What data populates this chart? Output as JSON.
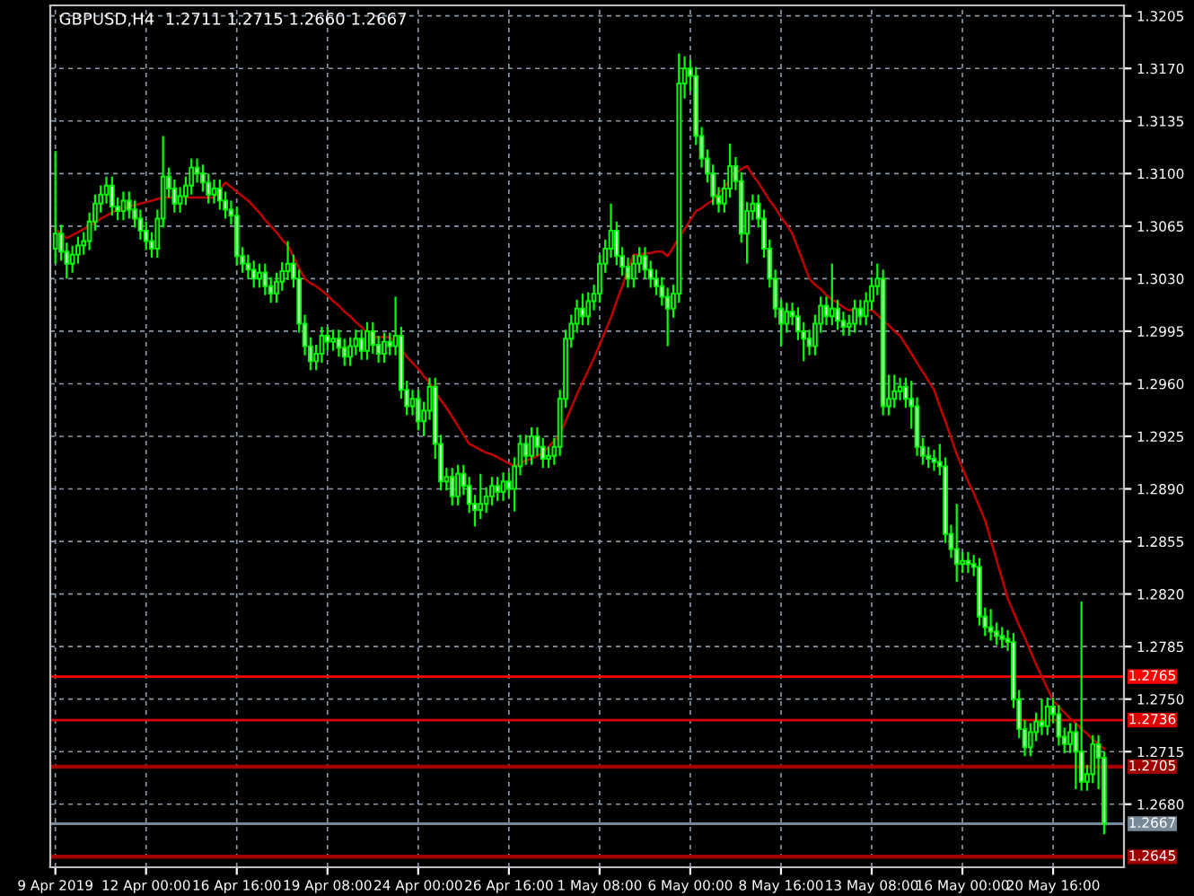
{
  "chart_data": {
    "type": "candlestick",
    "title": "GBPUSD,H4  1.2711 1.2715 1.2660 1.2667",
    "categories": [
      "9 Apr 2019",
      null,
      null,
      null,
      null,
      null,
      null,
      null,
      null,
      null,
      null,
      null,
      null,
      null,
      null,
      null,
      "12 Apr 00:00",
      null,
      null,
      null,
      null,
      null,
      null,
      null,
      null,
      null,
      null,
      null,
      null,
      null,
      null,
      null,
      "16 Apr 16:00",
      null,
      null,
      null,
      null,
      null,
      null,
      null,
      null,
      null,
      null,
      null,
      null,
      null,
      null,
      null,
      "19 Apr 08:00",
      null,
      null,
      null,
      null,
      null,
      null,
      null,
      null,
      null,
      null,
      null,
      null,
      null,
      null,
      null,
      "24 Apr 00:00",
      null,
      null,
      null,
      null,
      null,
      null,
      null,
      null,
      null,
      null,
      null,
      null,
      null,
      null,
      null,
      "26 Apr 16:00",
      null,
      null,
      null,
      null,
      null,
      null,
      null,
      null,
      null,
      null,
      null,
      null,
      null,
      null,
      null,
      "1 May 08:00",
      null,
      null,
      null,
      null,
      null,
      null,
      null,
      null,
      null,
      null,
      null,
      null,
      null,
      null,
      null,
      "6 May 00:00",
      null,
      null,
      null,
      null,
      null,
      null,
      null,
      null,
      null,
      null,
      null,
      null,
      null,
      null,
      null,
      "8 May 16:00",
      null,
      null,
      null,
      null,
      null,
      null,
      null,
      null,
      null,
      null,
      null,
      null,
      null,
      null,
      null,
      "13 May 08:00",
      null,
      null,
      null,
      null,
      null,
      null,
      null,
      null,
      null,
      null,
      null,
      null,
      null,
      null,
      null,
      "16 May 00:00",
      null,
      null,
      null,
      null,
      null,
      null,
      null,
      null,
      null,
      null,
      null,
      null,
      null,
      null,
      null,
      "20 May 16:00",
      null,
      null,
      null,
      null,
      null,
      null,
      null,
      null,
      null
    ],
    "color": "#00ff00",
    "ohlc": [
      [
        1.305,
        1.3115,
        1.304,
        1.306
      ],
      [
        1.306,
        1.3066,
        1.3042,
        1.3048
      ],
      [
        1.3048,
        1.3054,
        1.303,
        1.304
      ],
      [
        1.304,
        1.3052,
        1.3034,
        1.3046
      ],
      [
        1.3046,
        1.3058,
        1.304,
        1.3052
      ],
      [
        1.3052,
        1.3061,
        1.3046,
        1.3055
      ],
      [
        1.3055,
        1.3074,
        1.3049,
        1.3068
      ],
      [
        1.3068,
        1.3086,
        1.3062,
        1.308
      ],
      [
        1.308,
        1.3092,
        1.3074,
        1.3086
      ],
      [
        1.3086,
        1.3098,
        1.308,
        1.3092
      ],
      [
        1.3092,
        1.3098,
        1.3072,
        1.3078
      ],
      [
        1.3078,
        1.3084,
        1.3069,
        1.3075
      ],
      [
        1.3075,
        1.3088,
        1.3069,
        1.3082
      ],
      [
        1.3082,
        1.3088,
        1.307,
        1.3076
      ],
      [
        1.3076,
        1.3082,
        1.3064,
        1.307
      ],
      [
        1.307,
        1.3076,
        1.3056,
        1.3062
      ],
      [
        1.3062,
        1.3068,
        1.3049,
        1.3055
      ],
      [
        1.3055,
        1.3061,
        1.3044,
        1.305
      ],
      [
        1.305,
        1.3076,
        1.3044,
        1.307
      ],
      [
        1.307,
        1.3125,
        1.3064,
        1.3098
      ],
      [
        1.3098,
        1.3104,
        1.3084,
        1.309
      ],
      [
        1.309,
        1.3096,
        1.3074,
        1.308
      ],
      [
        1.308,
        1.3091,
        1.3074,
        1.3085
      ],
      [
        1.3085,
        1.3098,
        1.3079,
        1.3092
      ],
      [
        1.3092,
        1.311,
        1.3086,
        1.3104
      ],
      [
        1.3104,
        1.311,
        1.3094,
        1.31
      ],
      [
        1.31,
        1.3106,
        1.3088,
        1.3094
      ],
      [
        1.3094,
        1.31,
        1.308,
        1.3086
      ],
      [
        1.3086,
        1.3096,
        1.308,
        1.309
      ],
      [
        1.309,
        1.3096,
        1.3076,
        1.3082
      ],
      [
        1.3082,
        1.3088,
        1.307,
        1.3076
      ],
      [
        1.3076,
        1.3082,
        1.3066,
        1.3072
      ],
      [
        1.3072,
        1.3078,
        1.3039,
        1.3045
      ],
      [
        1.3045,
        1.3051,
        1.3034,
        1.304
      ],
      [
        1.304,
        1.3046,
        1.303,
        1.3036
      ],
      [
        1.3036,
        1.3042,
        1.3024,
        1.303
      ],
      [
        1.303,
        1.304,
        1.3024,
        1.3034
      ],
      [
        1.3034,
        1.304,
        1.3019,
        1.3025
      ],
      [
        1.3025,
        1.3031,
        1.3014,
        1.302
      ],
      [
        1.302,
        1.3034,
        1.3014,
        1.3028
      ],
      [
        1.3028,
        1.3041,
        1.3022,
        1.3035
      ],
      [
        1.3035,
        1.3055,
        1.3029,
        1.304
      ],
      [
        1.304,
        1.3046,
        1.3024,
        1.303
      ],
      [
        1.303,
        1.3036,
        1.2994,
        1.3
      ],
      [
        1.3,
        1.3006,
        1.2979,
        1.2985
      ],
      [
        1.2985,
        1.2991,
        1.2969,
        1.2975
      ],
      [
        1.2975,
        1.2986,
        1.2969,
        1.298
      ],
      [
        1.298,
        1.2998,
        1.2974,
        1.2992
      ],
      [
        1.2992,
        1.2998,
        1.2982,
        1.2988
      ],
      [
        1.2988,
        1.2996,
        1.2982,
        1.299
      ],
      [
        1.299,
        1.2996,
        1.2978,
        1.2984
      ],
      [
        1.2984,
        1.299,
        1.2972,
        1.2978
      ],
      [
        1.2978,
        1.2991,
        1.2972,
        1.2985
      ],
      [
        1.2985,
        1.2996,
        1.2979,
        1.299
      ],
      [
        1.299,
        1.2996,
        1.2976,
        1.2982
      ],
      [
        1.2982,
        1.3001,
        1.2976,
        1.2995
      ],
      [
        1.2995,
        1.3001,
        1.298,
        1.2986
      ],
      [
        1.2986,
        1.2992,
        1.2974,
        1.298
      ],
      [
        1.298,
        1.2994,
        1.2974,
        1.2988
      ],
      [
        1.2988,
        1.2994,
        1.2979,
        1.2985
      ],
      [
        1.2985,
        1.3018,
        1.2979,
        1.2992
      ],
      [
        1.2992,
        1.2998,
        1.295,
        1.2956
      ],
      [
        1.2956,
        1.2962,
        1.2939,
        1.2945
      ],
      [
        1.2945,
        1.2956,
        1.2939,
        1.295
      ],
      [
        1.295,
        1.2956,
        1.2929,
        1.2935
      ],
      [
        1.2935,
        1.2948,
        1.2925,
        1.2942
      ],
      [
        1.2942,
        1.2964,
        1.2936,
        1.2958
      ],
      [
        1.2958,
        1.2964,
        1.291,
        1.292
      ],
      [
        1.292,
        1.2926,
        1.2889,
        1.2895
      ],
      [
        1.2895,
        1.2904,
        1.2889,
        1.2898
      ],
      [
        1.2898,
        1.2904,
        1.2879,
        1.2885
      ],
      [
        1.2885,
        1.2906,
        1.2879,
        1.29
      ],
      [
        1.29,
        1.2906,
        1.2886,
        1.2892
      ],
      [
        1.2892,
        1.2898,
        1.2874,
        1.288
      ],
      [
        1.288,
        1.2886,
        1.2865,
        1.2876
      ],
      [
        1.2876,
        1.29,
        1.287,
        1.288
      ],
      [
        1.288,
        1.2891,
        1.2874,
        1.2885
      ],
      [
        1.2885,
        1.2898,
        1.2879,
        1.2892
      ],
      [
        1.2892,
        1.2898,
        1.2882,
        1.2888
      ],
      [
        1.2888,
        1.2901,
        1.2882,
        1.2895
      ],
      [
        1.2895,
        1.2901,
        1.2884,
        1.289
      ],
      [
        1.289,
        1.2911,
        1.2875,
        1.2905
      ],
      [
        1.2905,
        1.2926,
        1.2899,
        1.292
      ],
      [
        1.292,
        1.2926,
        1.2906,
        1.2912
      ],
      [
        1.2912,
        1.2931,
        1.2906,
        1.2925
      ],
      [
        1.2925,
        1.2931,
        1.2912,
        1.2918
      ],
      [
        1.2918,
        1.2924,
        1.2904,
        1.291
      ],
      [
        1.291,
        1.2918,
        1.2904,
        1.2912
      ],
      [
        1.2912,
        1.2924,
        1.2906,
        1.2918
      ],
      [
        1.2918,
        1.2956,
        1.2912,
        1.295
      ],
      [
        1.295,
        1.2996,
        1.2944,
        1.299
      ],
      [
        1.299,
        1.3006,
        1.2984,
        1.3
      ],
      [
        1.3,
        1.3016,
        1.2994,
        1.301
      ],
      [
        1.301,
        1.302,
        1.2999,
        1.3005
      ],
      [
        1.3005,
        1.3021,
        1.2999,
        1.3015
      ],
      [
        1.3015,
        1.3026,
        1.3009,
        1.302
      ],
      [
        1.302,
        1.3046,
        1.3014,
        1.304
      ],
      [
        1.304,
        1.3056,
        1.3034,
        1.305
      ],
      [
        1.305,
        1.308,
        1.3044,
        1.3062
      ],
      [
        1.3062,
        1.3068,
        1.3039,
        1.3045
      ],
      [
        1.3045,
        1.3051,
        1.3032,
        1.3038
      ],
      [
        1.3038,
        1.3044,
        1.3024,
        1.303
      ],
      [
        1.303,
        1.3046,
        1.3024,
        1.304
      ],
      [
        1.304,
        1.3051,
        1.3034,
        1.3045
      ],
      [
        1.3045,
        1.3051,
        1.303,
        1.3036
      ],
      [
        1.3036,
        1.3042,
        1.3024,
        1.303
      ],
      [
        1.303,
        1.3036,
        1.3019,
        1.3025
      ],
      [
        1.3025,
        1.3031,
        1.3012,
        1.3018
      ],
      [
        1.3018,
        1.3024,
        1.2985,
        1.301
      ],
      [
        1.301,
        1.3026,
        1.3004,
        1.302
      ],
      [
        1.302,
        1.318,
        1.3014,
        1.316
      ],
      [
        1.316,
        1.3178,
        1.315,
        1.317
      ],
      [
        1.317,
        1.3176,
        1.3155,
        1.3165
      ],
      [
        1.3165,
        1.3171,
        1.3119,
        1.3125
      ],
      [
        1.3125,
        1.3131,
        1.3104,
        1.311
      ],
      [
        1.311,
        1.3116,
        1.3094,
        1.31
      ],
      [
        1.31,
        1.3106,
        1.3079,
        1.3085
      ],
      [
        1.3085,
        1.3091,
        1.3074,
        1.308
      ],
      [
        1.308,
        1.3096,
        1.3074,
        1.309
      ],
      [
        1.309,
        1.312,
        1.3084,
        1.3105
      ],
      [
        1.3105,
        1.3111,
        1.3089,
        1.3095
      ],
      [
        1.3095,
        1.3101,
        1.3054,
        1.306
      ],
      [
        1.306,
        1.3081,
        1.304,
        1.3075
      ],
      [
        1.3075,
        1.3086,
        1.3069,
        1.308
      ],
      [
        1.308,
        1.3086,
        1.3064,
        1.307
      ],
      [
        1.307,
        1.3076,
        1.3044,
        1.305
      ],
      [
        1.305,
        1.3056,
        1.3024,
        1.303
      ],
      [
        1.303,
        1.3036,
        1.3004,
        1.301
      ],
      [
        1.301,
        1.3016,
        1.2985,
        1.3
      ],
      [
        1.3,
        1.3014,
        1.2994,
        1.3008
      ],
      [
        1.3008,
        1.3014,
        1.2999,
        1.3005
      ],
      [
        1.3005,
        1.3011,
        1.2989,
        1.2995
      ],
      [
        1.2995,
        1.3001,
        1.2975,
        1.299
      ],
      [
        1.299,
        1.2996,
        1.2979,
        1.2985
      ],
      [
        1.2985,
        1.3006,
        1.2979,
        1.3
      ],
      [
        1.3,
        1.3018,
        1.2994,
        1.3012
      ],
      [
        1.3012,
        1.3018,
        1.2999,
        1.3005
      ],
      [
        1.3005,
        1.304,
        1.2999,
        1.301
      ],
      [
        1.301,
        1.3016,
        1.2996,
        1.3002
      ],
      [
        1.3002,
        1.3008,
        1.2992,
        1.2998
      ],
      [
        1.2998,
        1.3006,
        1.2992,
        1.3
      ],
      [
        1.3,
        1.3016,
        1.2994,
        1.301
      ],
      [
        1.301,
        1.3016,
        1.2999,
        1.3005
      ],
      [
        1.3005,
        1.3021,
        1.2999,
        1.3015
      ],
      [
        1.3015,
        1.3031,
        1.3009,
        1.3025
      ],
      [
        1.3025,
        1.304,
        1.3019,
        1.303
      ],
      [
        1.303,
        1.3036,
        1.2939,
        1.2945
      ],
      [
        1.2945,
        1.2966,
        1.2939,
        1.295
      ],
      [
        1.295,
        1.2966,
        1.2944,
        1.2955
      ],
      [
        1.2955,
        1.2964,
        1.2949,
        1.2958
      ],
      [
        1.2958,
        1.2964,
        1.2944,
        1.295
      ],
      [
        1.295,
        1.2962,
        1.293,
        1.2945
      ],
      [
        1.2945,
        1.2951,
        1.2912,
        1.2918
      ],
      [
        1.2918,
        1.2924,
        1.2906,
        1.2912
      ],
      [
        1.2912,
        1.2918,
        1.2904,
        1.291
      ],
      [
        1.291,
        1.2916,
        1.2902,
        1.2908
      ],
      [
        1.2908,
        1.292,
        1.2899,
        1.2905
      ],
      [
        1.2905,
        1.2911,
        1.2854,
        1.286
      ],
      [
        1.286,
        1.2866,
        1.2844,
        1.285
      ],
      [
        1.285,
        1.288,
        1.2828,
        1.284
      ],
      [
        1.284,
        1.2848,
        1.2834,
        1.2842
      ],
      [
        1.2842,
        1.2848,
        1.2834,
        1.284
      ],
      [
        1.284,
        1.2846,
        1.2832,
        1.2838
      ],
      [
        1.2838,
        1.2844,
        1.2799,
        1.2805
      ],
      [
        1.2805,
        1.2811,
        1.2792,
        1.2798
      ],
      [
        1.2798,
        1.281,
        1.2789,
        1.2795
      ],
      [
        1.2795,
        1.2801,
        1.2786,
        1.2792
      ],
      [
        1.2792,
        1.2798,
        1.2784,
        1.279
      ],
      [
        1.279,
        1.2796,
        1.2782,
        1.2788
      ],
      [
        1.2788,
        1.2794,
        1.2744,
        1.275
      ],
      [
        1.275,
        1.2756,
        1.2724,
        1.273
      ],
      [
        1.273,
        1.2736,
        1.2712,
        1.2718
      ],
      [
        1.2718,
        1.2734,
        1.2712,
        1.2728
      ],
      [
        1.2728,
        1.2741,
        1.2722,
        1.2735
      ],
      [
        1.2735,
        1.275,
        1.2726,
        1.2732
      ],
      [
        1.2732,
        1.2751,
        1.2726,
        1.2745
      ],
      [
        1.2745,
        1.2751,
        1.2734,
        1.274
      ],
      [
        1.274,
        1.2746,
        1.2719,
        1.2725
      ],
      [
        1.2725,
        1.2731,
        1.2714,
        1.272
      ],
      [
        1.272,
        1.2734,
        1.2714,
        1.2728
      ],
      [
        1.2728,
        1.2734,
        1.269,
        1.2715
      ],
      [
        1.2715,
        1.2815,
        1.2689,
        1.2695
      ],
      [
        1.2695,
        1.2706,
        1.2689,
        1.27
      ],
      [
        1.27,
        1.2726,
        1.2694,
        1.272
      ],
      [
        1.272,
        1.2726,
        1.269,
        1.2711
      ],
      [
        1.2711,
        1.2715,
        1.266,
        1.2667
      ]
    ],
    "series": [
      {
        "type": "line",
        "color": "#c00000",
        "values": [
          1.3063,
          1.306,
          1.3057,
          1.3059,
          1.3061,
          1.3063,
          1.3065,
          1.3067,
          1.307,
          1.3072,
          1.3074,
          1.3076,
          1.3077,
          1.3078,
          1.3079,
          1.308,
          1.3081,
          1.3082,
          1.3083,
          1.3084,
          1.3084,
          1.3084,
          1.3084,
          1.3084,
          1.3084,
          1.3084,
          1.3084,
          1.3084,
          1.3084,
          1.3089,
          1.3094,
          1.3091,
          1.3088,
          1.3085,
          1.3082,
          1.3078,
          1.3074,
          1.3069,
          1.3065,
          1.3061,
          1.3056,
          1.3052,
          1.3045,
          1.3037,
          1.303,
          1.3027,
          1.3025,
          1.3022,
          1.3019,
          1.3015,
          1.3012,
          1.3008,
          1.3005,
          1.3001,
          1.2998,
          1.2994,
          1.2991,
          1.2991,
          1.2991,
          1.2991,
          1.2987,
          1.2983,
          1.2978,
          1.2974,
          1.297,
          1.2965,
          1.2961,
          1.2955,
          1.2949,
          1.2944,
          1.2938,
          1.2932,
          1.2926,
          1.292,
          1.2918,
          1.2916,
          1.2914,
          1.2913,
          1.2911,
          1.2909,
          1.2907,
          1.2905,
          1.2907,
          1.2909,
          1.291,
          1.2912,
          1.2914,
          1.2918,
          1.2922,
          1.2926,
          1.2935,
          1.2944,
          1.2953,
          1.2961,
          1.2969,
          1.2977,
          1.2986,
          1.2995,
          1.3004,
          1.3015,
          1.3025,
          1.3036,
          1.3046,
          1.3046,
          1.3047,
          1.3047,
          1.3048,
          1.3048,
          1.3045,
          1.3051,
          1.3057,
          1.3063,
          1.3069,
          1.3075,
          1.3077,
          1.308,
          1.3082,
          1.3087,
          1.3091,
          1.3096,
          1.31,
          1.3103,
          1.3105,
          1.3099,
          1.3094,
          1.3088,
          1.3082,
          1.3077,
          1.3071,
          1.3066,
          1.306,
          1.305,
          1.304,
          1.303,
          1.3026,
          1.3023,
          1.3019,
          1.3016,
          1.3014,
          1.3011,
          1.3009,
          1.3009,
          1.3009,
          1.3009,
          1.3009,
          1.3006,
          1.3002,
          1.2999,
          1.2995,
          1.2992,
          1.2986,
          1.298,
          1.2974,
          1.2968,
          1.2962,
          1.2956,
          1.2945,
          1.2935,
          1.2924,
          1.2913,
          1.2904,
          1.2895,
          1.2887,
          1.2878,
          1.2869,
          1.2856,
          1.2843,
          1.283,
          1.2817,
          1.2808,
          1.2799,
          1.2791,
          1.2782,
          1.2773,
          1.2765,
          1.2757,
          1.2749,
          1.2745,
          1.2741,
          1.2737,
          1.2734,
          1.273,
          1.2727,
          1.2723,
          1.272,
          1.2717
        ]
      }
    ],
    "ylim": [
      1.2638,
      1.3212
    ],
    "yticks": [
      1.3205,
      {
        "value": 1.317,
        "label": "1.3170"
      },
      1.3135,
      {
        "value": 1.31,
        "label": "1.3100"
      },
      1.3065,
      {
        "value": 1.303,
        "label": "1.3030"
      },
      1.2995,
      {
        "value": 1.296,
        "label": "1.2960"
      },
      1.2925,
      {
        "value": 1.289,
        "label": "1.2890"
      },
      1.2855,
      {
        "value": 1.282,
        "label": "1.2820"
      },
      1.2785,
      {
        "value": 1.275,
        "label": "1.2750"
      },
      1.2715,
      {
        "value": 1.268,
        "label": "1.2680"
      }
    ],
    "ref_lines": [
      {
        "axis": "y",
        "value": 1.2765,
        "label": "1.2765",
        "color": "#ff0000"
      },
      {
        "axis": "y",
        "value": 1.2736,
        "label": "1.2736",
        "color": "#e00000"
      },
      {
        "axis": "y",
        "value": 1.2705,
        "label": "1.2705",
        "color": "#a00000"
      },
      {
        "axis": "y",
        "value": 1.2667,
        "label": "1.2667",
        "color": "#778899"
      },
      {
        "axis": "y",
        "value": 1.2645,
        "label": "1.2645",
        "color": "#a00000"
      }
    ],
    "grid": true
  }
}
